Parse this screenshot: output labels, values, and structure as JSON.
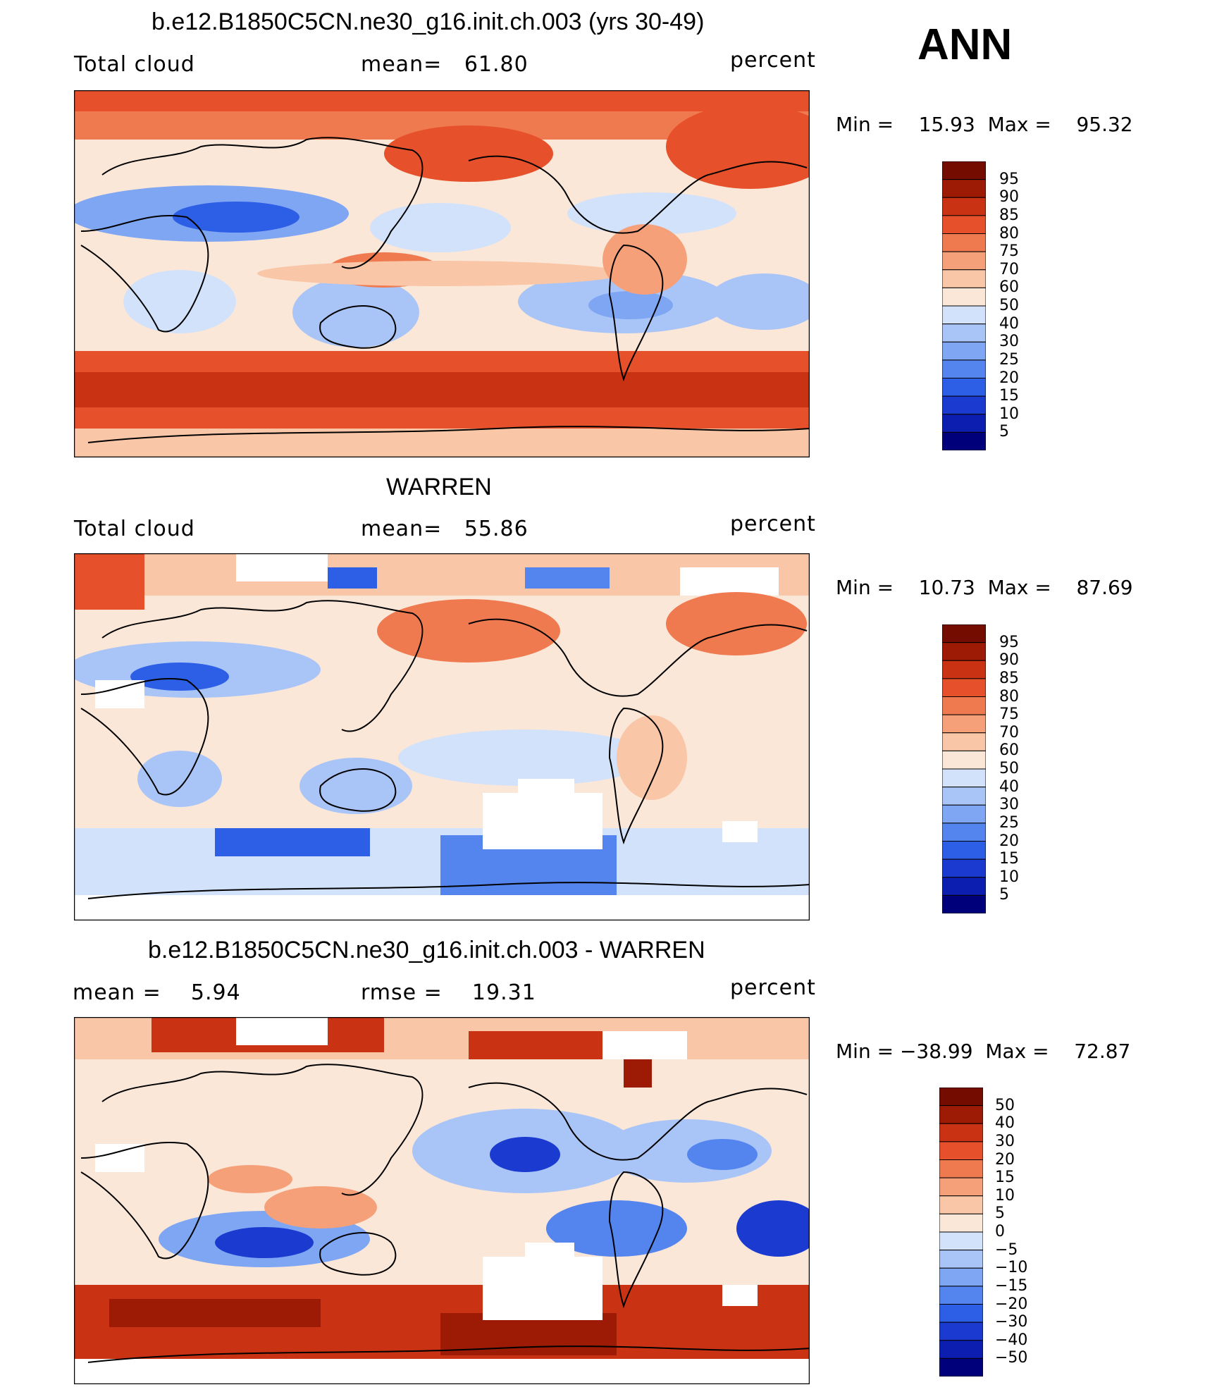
{
  "season": "ANN",
  "colors": {
    "abs_scale": [
      "#00007a",
      "#0c1eb0",
      "#1a3ad0",
      "#2d5fe6",
      "#5484ee",
      "#7fa6f3",
      "#a9c5f7",
      "#d2e2fb",
      "#fbe7d8",
      "#f9c6a7",
      "#f6a07a",
      "#f07a50",
      "#e6512b",
      "#c93212",
      "#9d1a05",
      "#740c00"
    ],
    "diff_scale": [
      "#00007a",
      "#0c1eb0",
      "#1a3ad0",
      "#2d5fe6",
      "#5484ee",
      "#7fa6f3",
      "#a9c5f7",
      "#d2e2fb",
      "#fbe7d8",
      "#f9c6a7",
      "#f6a07a",
      "#f07a50",
      "#e6512b",
      "#c93212",
      "#9d1a05",
      "#740c00"
    ],
    "missing": "#ffffff",
    "land_outline": "#000000"
  },
  "panels": [
    {
      "title": "b.e12.B1850C5CN.ne30_g16.init.ch.003 (yrs 30-49)",
      "left_label": "Total cloud",
      "center_label": "mean=   61.80",
      "right_label": "percent",
      "stats": "Min =    15.93  Max =    95.32",
      "colorbar_labels": [
        "95",
        "90",
        "85",
        "80",
        "75",
        "70",
        "60",
        "50",
        "40",
        "30",
        "25",
        "20",
        "15",
        "10",
        "5"
      ],
      "map": {
        "type": "model",
        "mean": 61.8,
        "min": 15.93,
        "max": 95.32
      }
    },
    {
      "title": "WARREN",
      "left_label": "Total cloud",
      "center_label": "mean=   55.86",
      "right_label": "percent",
      "stats": "Min =    10.73  Max =    87.69",
      "colorbar_labels": [
        "95",
        "90",
        "85",
        "80",
        "75",
        "70",
        "60",
        "50",
        "40",
        "30",
        "25",
        "20",
        "15",
        "10",
        "5"
      ],
      "map": {
        "type": "obs",
        "mean": 55.86,
        "min": 10.73,
        "max": 87.69
      }
    },
    {
      "title": "b.e12.B1850C5CN.ne30_g16.init.ch.003 - WARREN",
      "left_label": "mean =    5.94",
      "center_label": "rmse =    19.31",
      "right_label": "percent",
      "stats": "Min = −38.99  Max =    72.87",
      "colorbar_labels": [
        "50",
        "40",
        "30",
        "20",
        "15",
        "10",
        "5",
        "0",
        "−5",
        "−10",
        "−15",
        "−20",
        "−30",
        "−40",
        "−50"
      ],
      "map": {
        "type": "diff",
        "mean": 5.94,
        "rmse": 19.31,
        "min": -38.99,
        "max": 72.87
      }
    }
  ]
}
